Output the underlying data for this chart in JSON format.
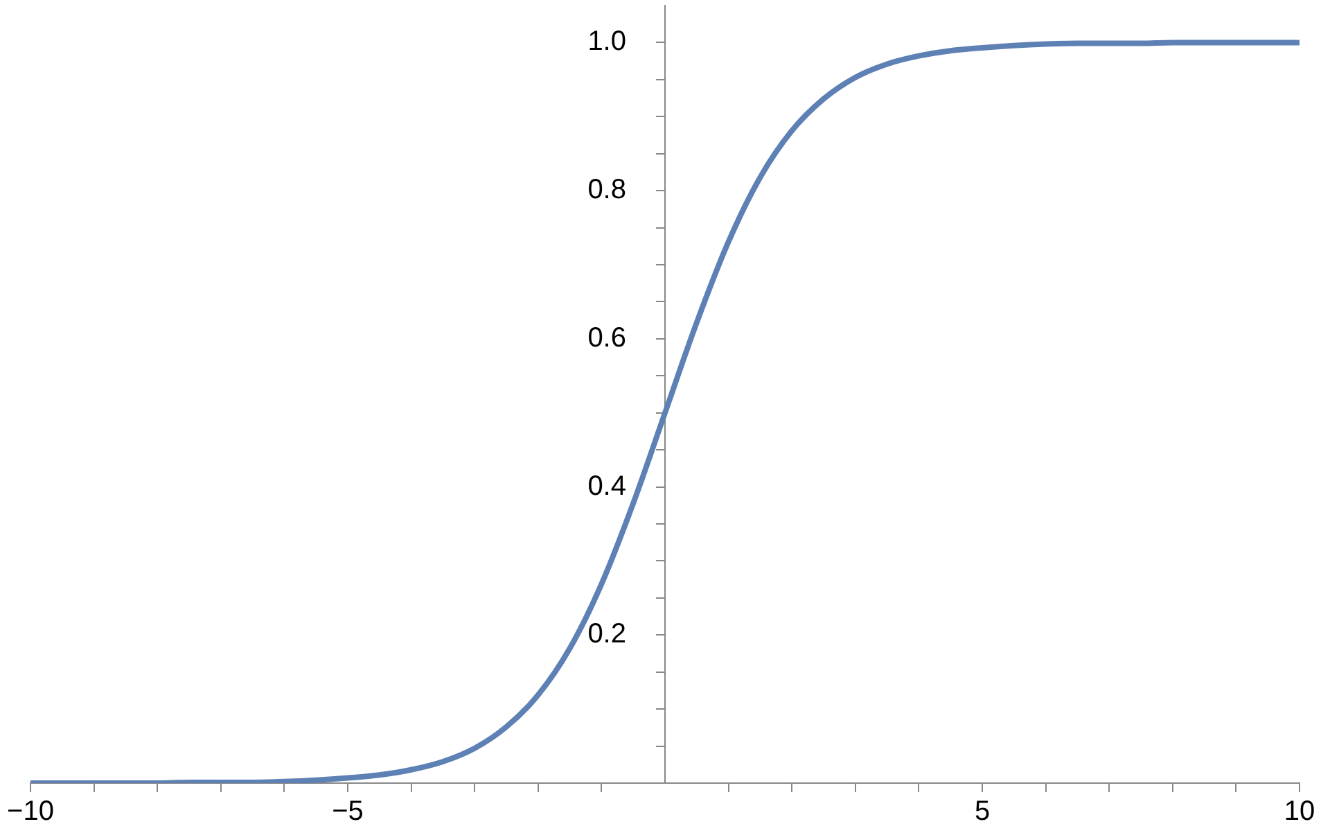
{
  "chart_data": {
    "type": "line",
    "x": [
      -10,
      -9.5,
      -9,
      -8.5,
      -8,
      -7.5,
      -7,
      -6.5,
      -6,
      -5.5,
      -5,
      -4.5,
      -4,
      -3.5,
      -3,
      -2.5,
      -2,
      -1.5,
      -1,
      -0.5,
      0,
      0.5,
      1,
      1.5,
      2,
      2.5,
      3,
      3.5,
      4,
      4.5,
      5,
      5.5,
      6,
      6.5,
      7,
      7.5,
      8,
      8.5,
      9,
      9.5,
      10
    ],
    "series": [
      {
        "color": "#5e81b5",
        "values": [
          0,
          0,
          0,
          0,
          0,
          0.001,
          0.001,
          0.001,
          0.002,
          0.004,
          0.007,
          0.011,
          0.018,
          0.029,
          0.047,
          0.076,
          0.119,
          0.182,
          0.269,
          0.378,
          0.5,
          0.622,
          0.731,
          0.818,
          0.881,
          0.924,
          0.953,
          0.971,
          0.982,
          0.989,
          0.993,
          0.996,
          0.998,
          0.999,
          0.999,
          0.999,
          1,
          1,
          1,
          1,
          1
        ]
      }
    ],
    "xlim": [
      -10,
      10
    ],
    "xticks": [
      {
        "value": -10,
        "label": "−10"
      },
      {
        "value": -9,
        "label": null
      },
      {
        "value": -8,
        "label": null
      },
      {
        "value": -7,
        "label": null
      },
      {
        "value": -6,
        "label": null
      },
      {
        "value": -5,
        "label": "−5"
      },
      {
        "value": -4,
        "label": null
      },
      {
        "value": -3,
        "label": null
      },
      {
        "value": -2,
        "label": null
      },
      {
        "value": -1,
        "label": null
      },
      {
        "value": 1,
        "label": null
      },
      {
        "value": 2,
        "label": null
      },
      {
        "value": 3,
        "label": null
      },
      {
        "value": 4,
        "label": null
      },
      5,
      {
        "value": 6,
        "label": null
      },
      {
        "value": 7,
        "label": null
      },
      {
        "value": 8,
        "label": null
      },
      {
        "value": 9,
        "label": null
      },
      10
    ],
    "ylim": [
      0,
      1.05
    ],
    "yticks": [
      {
        "value": 0.05,
        "label": null
      },
      {
        "value": 0.1,
        "label": null
      },
      {
        "value": 0.15,
        "label": null
      },
      0.2,
      {
        "value": 0.25,
        "label": null
      },
      {
        "value": 0.3,
        "label": null
      },
      {
        "value": 0.35,
        "label": null
      },
      0.4,
      {
        "value": 0.45,
        "label": null
      },
      {
        "value": 0.5,
        "label": null
      },
      {
        "value": 0.55,
        "label": null
      },
      0.6,
      {
        "value": 0.65,
        "label": null
      },
      {
        "value": 0.7,
        "label": null
      },
      {
        "value": 0.75,
        "label": null
      },
      0.8,
      {
        "value": 0.85,
        "label": null
      },
      {
        "value": 0.9,
        "label": null
      },
      {
        "value": 0.95,
        "label": null
      },
      {
        "value": 1,
        "label": "1.0"
      }
    ],
    "marker": "none",
    "line_style": "solid"
  }
}
